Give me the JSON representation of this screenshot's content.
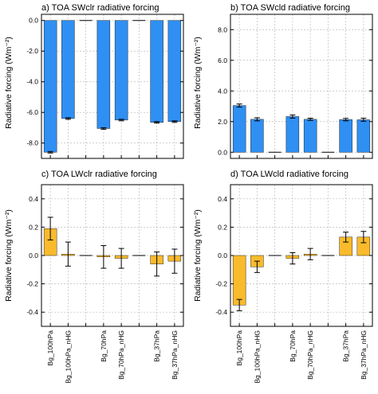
{
  "colors": {
    "blue": "#2f8ff3",
    "gold": "#f9bb2c",
    "grid": "#bdbdbd",
    "axis": "#000000"
  },
  "chart_data": [
    {
      "type": "bar",
      "title": "a) TOA SWclr radiative forcing",
      "ylabel": "Radiative forcing (Wm⁻²)",
      "ylim": [
        -9.0,
        0.4
      ],
      "yticks": [
        0.0,
        -2.0,
        -4.0,
        -6.0,
        -8.0
      ],
      "ytick_labels": [
        "0.0",
        "-2.0",
        "-4.0",
        "-6.0",
        "-8.0"
      ],
      "color": "#2f8ff3",
      "values": [
        -8.6,
        -6.4,
        0.0,
        -7.05,
        -6.5,
        0.0,
        -6.65,
        -6.6
      ],
      "errors": [
        0.05,
        0.05,
        0.0,
        0.05,
        0.05,
        0.0,
        0.05,
        0.05
      ],
      "grid": true
    },
    {
      "type": "bar",
      "title": "b) TOA SWcld radiative forcing",
      "ylabel": "Radiative forcing (Wm⁻²)",
      "ylim": [
        -0.4,
        9.0
      ],
      "yticks": [
        0.0,
        2.0,
        4.0,
        6.0,
        8.0
      ],
      "ytick_labels": [
        "0.0",
        "2.0",
        "4.0",
        "6.0",
        "8.0"
      ],
      "color": "#2f8ff3",
      "values": [
        3.05,
        2.15,
        0.0,
        2.33,
        2.15,
        0.0,
        2.13,
        2.12
      ],
      "errors": [
        0.1,
        0.1,
        0.0,
        0.1,
        0.07,
        0.0,
        0.08,
        0.1
      ],
      "grid": true
    },
    {
      "type": "bar",
      "title": "c) TOA LWclr radiative forcing",
      "ylabel": "Radiative forcing (Wm⁻²)",
      "ylim": [
        -0.5,
        0.5
      ],
      "yticks": [
        0.4,
        0.2,
        0.0,
        -0.2,
        -0.4
      ],
      "ytick_labels": [
        "0.4",
        "0.2",
        "0.0",
        "-0.2",
        "-0.4"
      ],
      "color": "#f9bb2c",
      "values": [
        0.19,
        0.01,
        0.0,
        -0.01,
        -0.02,
        0.0,
        -0.06,
        -0.04
      ],
      "errors": [
        0.08,
        0.085,
        0.0,
        0.08,
        0.07,
        0.0,
        0.085,
        0.085
      ],
      "grid": true
    },
    {
      "type": "bar",
      "title": "d) TOA LWcld radiative forcing",
      "ylabel": "Radiative forcing (Wm⁻²)",
      "ylim": [
        -0.5,
        0.5
      ],
      "yticks": [
        0.4,
        0.2,
        0.0,
        -0.2,
        -0.4
      ],
      "ytick_labels": [
        "0.4",
        "0.2",
        "0.0",
        "-0.2",
        "-0.4"
      ],
      "color": "#f9bb2c",
      "values": [
        -0.35,
        -0.08,
        0.0,
        -0.02,
        0.01,
        0.0,
        0.13,
        0.13
      ],
      "errors": [
        0.04,
        0.04,
        0.0,
        0.04,
        0.04,
        0.0,
        0.035,
        0.04
      ],
      "grid": true
    }
  ],
  "category_labels": [
    "Bg_100hPa",
    "Bg_100hPa_nHG",
    "Bg_70hPa",
    "Bg_70hPa_nHG",
    "Bg_37hPa",
    "Bg_37hPa_nHG"
  ]
}
